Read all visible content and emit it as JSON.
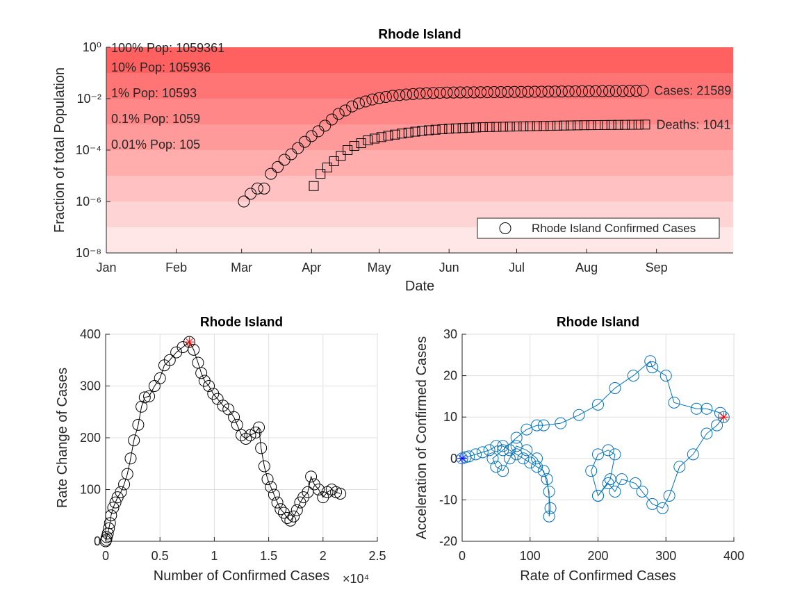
{
  "chart_data": [
    {
      "type": "scatter",
      "title": "Rhode Island",
      "xlabel": "Date",
      "ylabel": "Fraction of total Population",
      "log_y": true,
      "grid": false,
      "band_color": "#ff0000",
      "legend": "southeast",
      "xlim": [
        0,
        278
      ],
      "xticks": [
        {
          "value": 0,
          "label": "Jan"
        },
        {
          "value": 31,
          "label": "Feb"
        },
        {
          "value": 60,
          "label": "Mar"
        },
        {
          "value": 91,
          "label": "Apr"
        },
        {
          "value": 121,
          "label": "May"
        },
        {
          "value": 152,
          "label": "Jun"
        },
        {
          "value": 182,
          "label": "Jul"
        },
        {
          "value": 213,
          "label": "Aug"
        },
        {
          "value": 244,
          "label": "Sep"
        }
      ],
      "ylim": [
        1e-08,
        1
      ],
      "yticks": [
        {
          "value": 1,
          "label": "10⁰"
        },
        {
          "value": 0.01,
          "label": "10⁻²"
        },
        {
          "value": 0.0001,
          "label": "10⁻⁴"
        },
        {
          "value": 1e-06,
          "label": "10⁻⁶"
        },
        {
          "value": 1e-08,
          "label": "10⁻⁸"
        }
      ],
      "population_labels": [
        "100% Pop: 1059361",
        "10% Pop: 105936",
        "1% Pop: 10593",
        "0.1% Pop: 1059",
        "0.01% Pop: 105"
      ],
      "series": [
        {
          "name": "Rhode Island Confirmed Cases",
          "color": "#000000",
          "marker": "o",
          "line": false,
          "annotation": "Cases: 21589",
          "x": [
            61,
            64,
            67,
            70,
            73,
            76,
            79,
            82,
            85,
            88,
            91,
            94,
            97,
            100,
            103,
            106,
            109,
            112,
            115,
            118,
            121,
            124,
            127,
            130,
            133,
            136,
            139,
            142,
            145,
            148,
            151,
            154,
            157,
            160,
            163,
            166,
            169,
            172,
            175,
            178,
            181,
            184,
            187,
            190,
            193,
            196,
            199,
            202,
            205,
            208,
            211,
            214,
            217,
            220,
            223,
            226,
            229,
            232,
            235,
            238
          ],
          "values": [
            1e-06,
            2e-06,
            3.2e-06,
            3.2e-06,
            1.2e-05,
            2.2e-05,
            4.2e-05,
            6.9e-05,
            0.00012,
            0.00021,
            0.00035,
            0.00054,
            0.00089,
            0.00155,
            0.00257,
            0.00347,
            0.005,
            0.0065,
            0.0078,
            0.0093,
            0.0105,
            0.0117,
            0.0129,
            0.0138,
            0.0145,
            0.0151,
            0.0158,
            0.0162,
            0.0166,
            0.017,
            0.0173,
            0.0174,
            0.0175,
            0.0176,
            0.0177,
            0.0178,
            0.0179,
            0.018,
            0.0181,
            0.0182,
            0.0183,
            0.0184,
            0.0185,
            0.0186,
            0.0187,
            0.0188,
            0.0189,
            0.019,
            0.0191,
            0.0192,
            0.0193,
            0.0194,
            0.0195,
            0.0196,
            0.0197,
            0.0198,
            0.0199,
            0.02,
            0.0202,
            0.0204
          ]
        },
        {
          "color": "#000000",
          "marker": "s",
          "line": false,
          "annotation": "Deaths: 1041",
          "x": [
            92,
            95,
            98,
            101,
            104,
            107,
            110,
            113,
            116,
            119,
            122,
            125,
            128,
            131,
            134,
            137,
            140,
            143,
            146,
            149,
            152,
            155,
            158,
            161,
            164,
            167,
            170,
            173,
            176,
            179,
            182,
            185,
            188,
            191,
            194,
            197,
            200,
            203,
            206,
            209,
            212,
            215,
            218,
            221,
            224,
            227,
            230,
            233,
            236,
            239
          ],
          "values": [
            4e-06,
            1.2e-05,
            2.1e-05,
            3.7e-05,
            6e-05,
            0.0001,
            0.000145,
            0.000186,
            0.00024,
            0.00028,
            0.00032,
            0.00036,
            0.0004,
            0.00044,
            0.00048,
            0.00052,
            0.00056,
            0.00059,
            0.00062,
            0.00065,
            0.00068,
            0.0007,
            0.00072,
            0.00074,
            0.00076,
            0.00078,
            0.00079,
            0.0008,
            0.00081,
            0.00082,
            0.00083,
            0.00084,
            0.00085,
            0.00086,
            0.00087,
            0.00088,
            0.00089,
            0.0009,
            0.00091,
            0.00092,
            0.00093,
            0.000935,
            0.00094,
            0.000945,
            0.00095,
            0.000955,
            0.00096,
            0.000965,
            0.00097,
            0.000983
          ]
        }
      ]
    },
    {
      "type": "line",
      "title": "Rhode Island",
      "xlabel": "Number of Confirmed Cases",
      "ylabel": "Rate Change of Cases",
      "x_exponent_label": "×10⁴",
      "grid": true,
      "xlim": [
        0,
        25000
      ],
      "xticks": [
        0,
        {
          "value": 5000,
          "label": "0.5"
        },
        {
          "value": 10000,
          "label": "1"
        },
        {
          "value": 15000,
          "label": "1.5"
        },
        {
          "value": 20000,
          "label": "2"
        },
        {
          "value": 25000,
          "label": "2.5"
        }
      ],
      "ylim": [
        0,
        400
      ],
      "yticks": [
        0,
        100,
        200,
        300,
        400
      ],
      "series": [
        {
          "color": "#000000",
          "marker": "o",
          "line": true,
          "x": [
            0,
            50,
            100,
            200,
            300,
            400,
            500,
            700,
            900,
            1100,
            1400,
            1700,
            2000,
            2300,
            2600,
            3000,
            3300,
            3600,
            4000,
            4500,
            5000,
            5400,
            5900,
            6500,
            7100,
            7700,
            8100,
            8500,
            8800,
            9100,
            9500,
            9900,
            10300,
            10800,
            11300,
            11800,
            12100,
            12500,
            12900,
            13300,
            13800,
            14100,
            14300,
            14600,
            14900,
            15200,
            15500,
            15800,
            16100,
            16400,
            16700,
            17000,
            17300,
            17600,
            17900,
            18200,
            18600,
            18900,
            19200,
            19600,
            20000,
            20400,
            20800,
            21200,
            21589
          ],
          "values": [
            0,
            3,
            8,
            15,
            25,
            35,
            50,
            65,
            75,
            85,
            95,
            110,
            130,
            160,
            195,
            225,
            260,
            278,
            280,
            300,
            315,
            340,
            350,
            365,
            375,
            385,
            370,
            345,
            325,
            310,
            300,
            285,
            275,
            262,
            255,
            240,
            225,
            205,
            198,
            205,
            210,
            220,
            180,
            145,
            120,
            105,
            90,
            75,
            62,
            55,
            45,
            40,
            48,
            60,
            75,
            85,
            95,
            125,
            110,
            100,
            85,
            95,
            100,
            95,
            92
          ]
        },
        {
          "color": "#ff0000",
          "marker": "*",
          "line": false,
          "x": [
            7700
          ],
          "values": [
            385
          ]
        }
      ]
    },
    {
      "type": "line",
      "title": "Rhode Island",
      "xlabel": "Rate of Confirmed Cases",
      "ylabel": "Acceleration of Confirmed Cases",
      "grid": true,
      "xlim": [
        0,
        400
      ],
      "xticks": [
        0,
        100,
        200,
        300,
        400
      ],
      "ylim": [
        -20,
        30
      ],
      "yticks": [
        -20,
        -10,
        0,
        10,
        20,
        30
      ],
      "series": [
        {
          "color": "#0072bd",
          "marker": "o",
          "line": true,
          "x": [
            0,
            5,
            10,
            20,
            30,
            40,
            50,
            60,
            70,
            80,
            90,
            100,
            110,
            120,
            128,
            128,
            130,
            125,
            110,
            95,
            80,
            70,
            60,
            50,
            45,
            60,
            80,
            95,
            110,
            120,
            145,
            172,
            200,
            225,
            252,
            277,
            280,
            300,
            312,
            345,
            360,
            380,
            385,
            375,
            360,
            340,
            320,
            305,
            295,
            280,
            265,
            255,
            235,
            225,
            215,
            200,
            190,
            200,
            215,
            225,
            218,
            200
          ],
          "values": [
            0,
            0.3,
            0.5,
            1,
            1.5,
            2,
            3,
            3,
            2,
            1,
            0,
            -1,
            -2,
            -3,
            -8,
            -14,
            -12,
            -5,
            0,
            2,
            3,
            0,
            -3,
            -2,
            0,
            2,
            5,
            7,
            8,
            8,
            8.5,
            10.5,
            13,
            17,
            20,
            23.5,
            22,
            20,
            13.5,
            12,
            12,
            11,
            10,
            8,
            6,
            1,
            -2,
            -9,
            -12,
            -11,
            -8,
            -6,
            -5,
            -8,
            -6,
            -9,
            -3,
            1,
            2,
            1,
            -5,
            -9
          ]
        },
        {
          "color": "#ff0000",
          "marker": "*",
          "line": false,
          "x": [
            385
          ],
          "values": [
            10
          ]
        },
        {
          "color": "#0000ff",
          "marker": "*",
          "line": false,
          "x": [
            0
          ],
          "values": [
            0
          ]
        }
      ]
    }
  ]
}
